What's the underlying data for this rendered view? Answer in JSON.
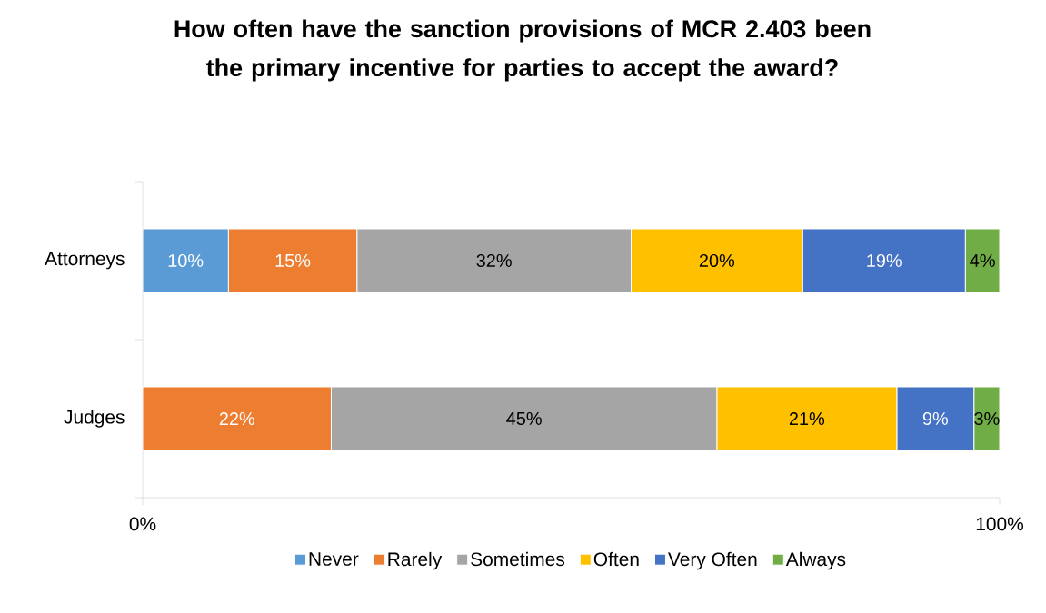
{
  "chart_data": {
    "type": "bar",
    "orientation": "horizontal",
    "stacked": true,
    "title": "How often have the sanction provisions of MCR 2.403 been the primary incentive for parties to accept the award?",
    "categories": [
      "Attorneys",
      "Judges"
    ],
    "xlim": [
      0,
      100
    ],
    "xticks": [
      {
        "value": 0,
        "label": "0%"
      },
      {
        "value": 100,
        "label": "100%"
      }
    ],
    "legend": "bottom",
    "grid": false,
    "series": [
      {
        "name": "Never",
        "color": "#5b9bd5",
        "values": [
          10,
          0
        ],
        "value_labels": [
          "10%",
          null
        ]
      },
      {
        "name": "Rarely",
        "color": "#ed7d31",
        "values": [
          15,
          22
        ],
        "value_labels": [
          "15%",
          "22%"
        ]
      },
      {
        "name": "Sometimes",
        "color": "#a5a5a5",
        "values": [
          32,
          45
        ],
        "value_labels": [
          "32%",
          "45%"
        ]
      },
      {
        "name": "Often",
        "color": "#ffc000",
        "values": [
          20,
          21
        ],
        "value_labels": [
          "20%",
          "21%"
        ]
      },
      {
        "name": "Very Often",
        "color": "#4472c4",
        "values": [
          19,
          9
        ],
        "value_labels": [
          "19%",
          "9%"
        ]
      },
      {
        "name": "Always",
        "color": "#70ad47",
        "values": [
          4,
          3
        ],
        "value_labels": [
          "4%",
          "3%"
        ]
      }
    ]
  }
}
